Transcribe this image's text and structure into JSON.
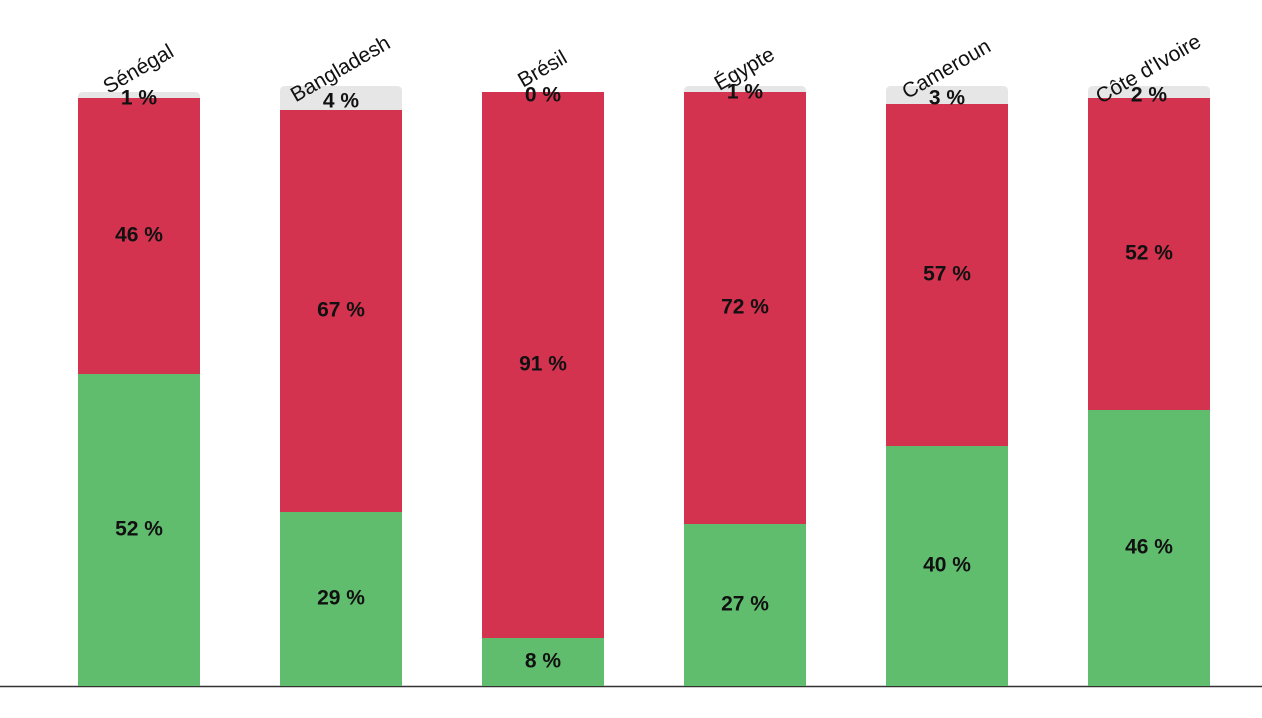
{
  "chart_data": {
    "type": "stacked-bar",
    "categories": [
      "Sénégal",
      "Bangladesh",
      "Brésil",
      "Égypte",
      "Cameroun",
      "Côte d'Ivoire"
    ],
    "series": [
      {
        "color": "#60bd6e",
        "values": [
          52,
          29,
          8,
          27,
          40,
          46
        ],
        "value_labels": [
          "52 %",
          "29 %",
          "8 %",
          "27 %",
          "40 %",
          "46 %"
        ]
      },
      {
        "color": "#d43350",
        "values": [
          46,
          67,
          91,
          72,
          57,
          52
        ],
        "value_labels": [
          "46 %",
          "67 %",
          "91 %",
          "72 %",
          "57 %",
          "52 %"
        ]
      },
      {
        "color": "#e6e6e6",
        "values": [
          1,
          4,
          0,
          1,
          3,
          2
        ],
        "value_labels": [
          "1 %",
          "4 %",
          "0 %",
          "1 %",
          "3 %",
          "2 %"
        ]
      }
    ],
    "ylim": [
      0,
      100
    ]
  }
}
